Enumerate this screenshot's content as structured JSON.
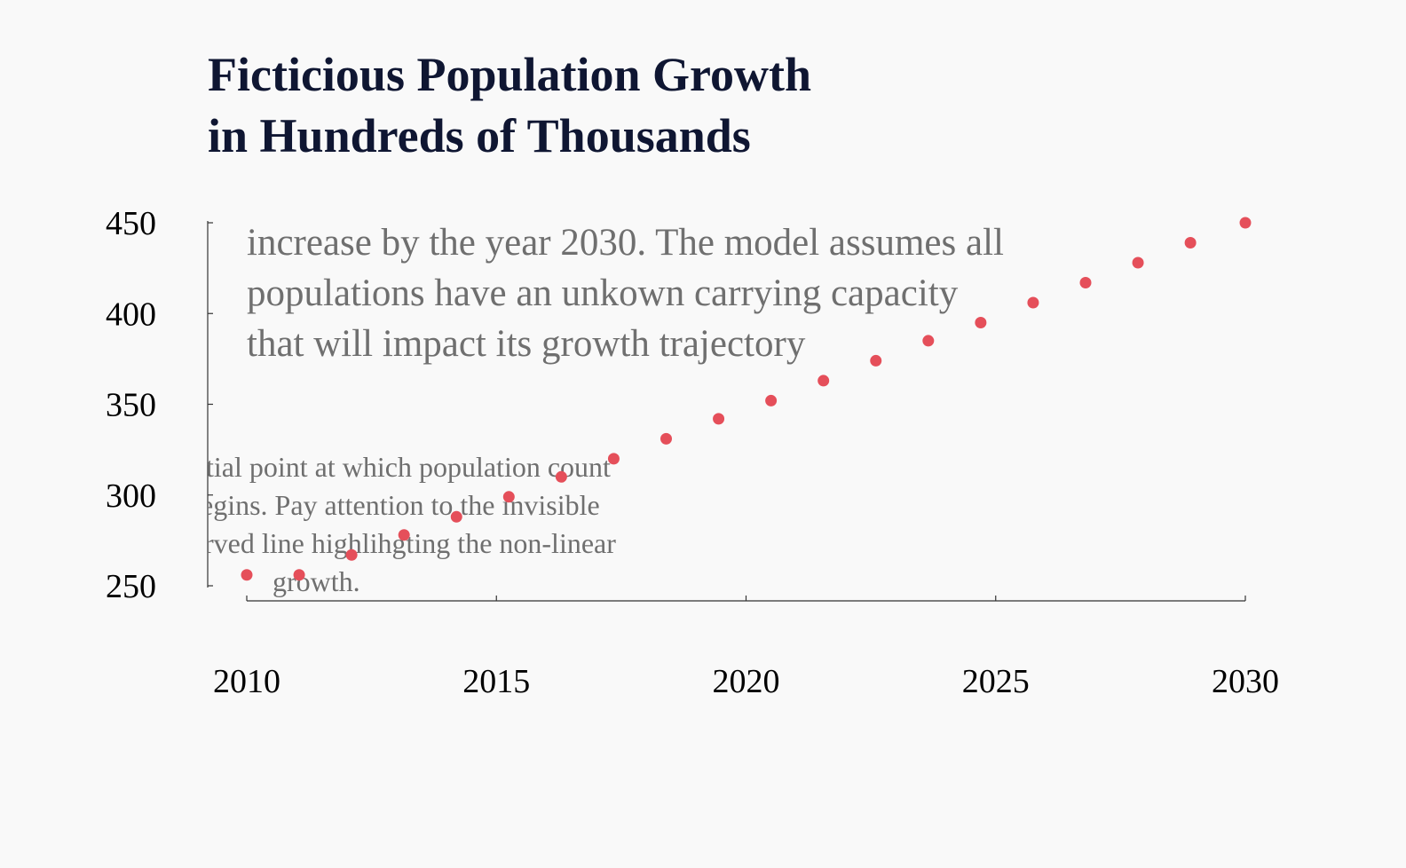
{
  "chart_data": {
    "type": "scatter",
    "title_lines": [
      "Ficticious Population Growth",
      "in Hundreds of Thousands"
    ],
    "xlabel": "",
    "ylabel": "",
    "xlim": [
      2010,
      2030
    ],
    "ylim": [
      250,
      450
    ],
    "xticks": [
      2010,
      2015,
      2020,
      2025,
      2030
    ],
    "yticks": [
      250,
      300,
      350,
      400,
      450
    ],
    "x": [
      2010,
      2011.05,
      2012.1,
      2013.15,
      2014.2,
      2015.25,
      2016.3,
      2017.35,
      2018.4,
      2019.45,
      2020.5,
      2021.55,
      2022.6,
      2023.65,
      2024.7,
      2025.75,
      2026.8,
      2027.85,
      2028.9,
      2030
    ],
    "y": [
      256,
      256,
      267,
      278,
      288,
      299,
      310,
      320,
      331,
      342,
      352,
      363,
      374,
      385,
      395,
      406,
      417,
      428,
      439,
      450
    ],
    "marker_color": "#e54f5a",
    "grid": false,
    "annotations": [
      {
        "id": "growth-note",
        "lines": [
          "increase by the year 2030. The model assumes all",
          "populations have an unkown carrying capacity",
          "that will impact its growth trajectory"
        ]
      },
      {
        "id": "initial-note",
        "lines": [
          "tial point at which population count",
          "egins. Pay attention to the invisible",
          "rved line highlihgting the non-linear",
          "growth."
        ]
      }
    ]
  }
}
